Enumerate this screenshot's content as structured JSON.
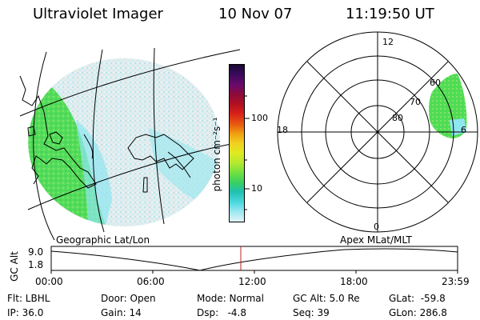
{
  "header": {
    "title": "Ultraviolet Imager",
    "date": "10 Nov 07",
    "time": "11:19:50 UT"
  },
  "colorbar": {
    "unit_label": "photon cm⁻²s⁻¹",
    "tick_labels": [
      "100",
      "10"
    ],
    "colors_top_to_bottom": [
      "#1a0a33",
      "#3a0a5c",
      "#6a0a6a",
      "#8e0a3a",
      "#b01020",
      "#d8201a",
      "#e85a10",
      "#f0a010",
      "#f0d020",
      "#e0ea20",
      "#b0e830",
      "#70e040",
      "#3ad060",
      "#20c0b0",
      "#50d8e0",
      "#a0e8f0",
      "#e0f4f8"
    ]
  },
  "polar": {
    "mlt_labels": {
      "top": "12",
      "left": "18",
      "right": "6",
      "bottom": "0"
    },
    "lat_labels": [
      "60",
      "70",
      "80"
    ]
  },
  "timeline": {
    "ylabel": "GC Alt",
    "y_ticks": [
      "9.0",
      "1.8"
    ],
    "left_title": "Geographic Lat/Lon",
    "right_title": "Apex  MLat/MLT",
    "x_ticks": [
      "00:00",
      "06:00",
      "12:00",
      "18:00",
      "23:59"
    ]
  },
  "info": {
    "row1": [
      "Flt: LBHL",
      "Door: Open",
      "Mode: Normal",
      "GC Alt: 5.0 Re",
      "GLat:  -59.8"
    ],
    "row2": [
      "IP: 36.0",
      "Gain: 14",
      "Dsp:   -4.8",
      "Seq: 39",
      "GLon: 286.8"
    ]
  },
  "colors": {
    "green": "#4ade50",
    "cyan": "#8ee6ef",
    "pale": "#dcebee",
    "marker": "#c02020"
  }
}
